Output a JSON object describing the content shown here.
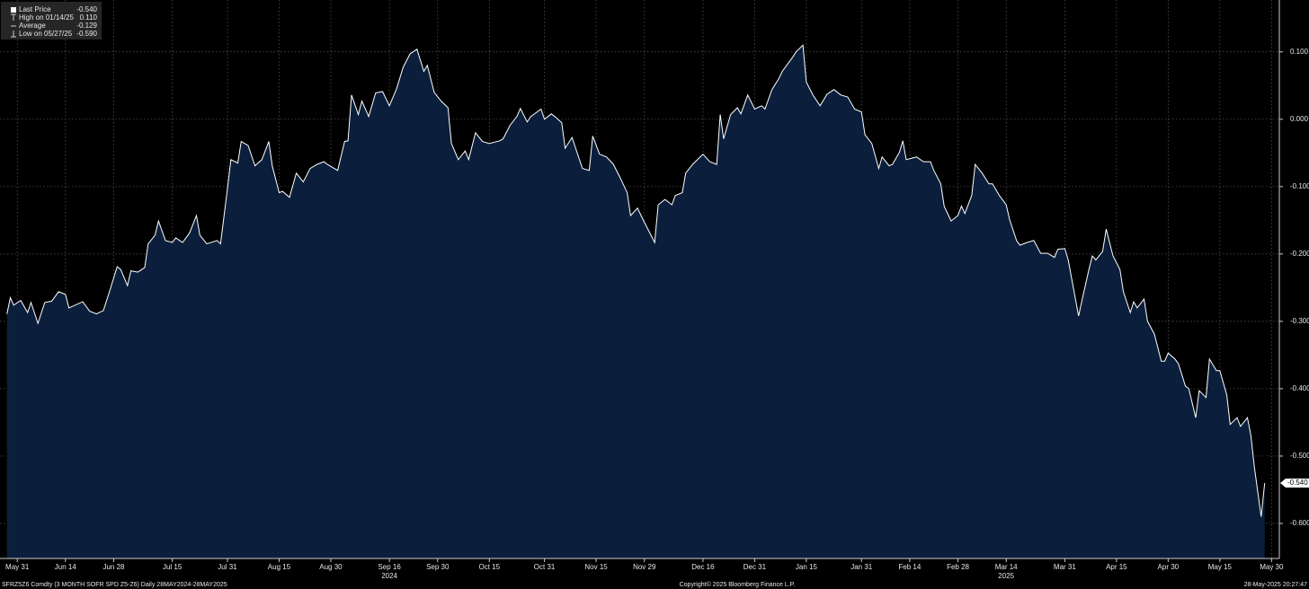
{
  "chart_data": {
    "type": "area",
    "legend": [
      {
        "label": "Last Price",
        "value": "-0.540"
      },
      {
        "label": "High on 01/14/25",
        "value": "0.110"
      },
      {
        "label": "Average",
        "value": "-0.129"
      },
      {
        "label": "Low on 05/27/25",
        "value": "-0.590"
      }
    ],
    "last_value": -0.54,
    "last_label": "-0.540",
    "color": "#ffffff",
    "fill_color": "#0b1f3d",
    "grid": true,
    "xlim": [
      "2024-05-26",
      "2025-06-01"
    ],
    "ylim": [
      -0.652,
      0.177
    ],
    "yticks": [
      {
        "value": 0.1,
        "label": "0.100"
      },
      {
        "value": 0,
        "label": "0.000"
      },
      {
        "value": -0.1,
        "label": "-0.100"
      },
      {
        "value": -0.2,
        "label": "-0.200"
      },
      {
        "value": -0.3,
        "label": "-0.300"
      },
      {
        "value": -0.4,
        "label": "-0.400"
      },
      {
        "value": -0.5,
        "label": "-0.500"
      },
      {
        "value": -0.6,
        "label": "-0.600"
      }
    ],
    "xticks": [
      {
        "value": "2024-05-31",
        "label": "May 31"
      },
      {
        "value": "2024-06-14",
        "label": "Jun 14"
      },
      {
        "value": "2024-06-28",
        "label": "Jun 28"
      },
      {
        "value": "2024-07-15",
        "label": "Jul 15"
      },
      {
        "value": "2024-07-31",
        "label": "Jul 31"
      },
      {
        "value": "2024-08-15",
        "label": "Aug 15"
      },
      {
        "value": "2024-08-30",
        "label": "Aug 30"
      },
      {
        "value": "2024-09-16",
        "label": "Sep 16"
      },
      {
        "value": "2024-09-30",
        "label": "Sep 30"
      },
      {
        "value": "2024-10-15",
        "label": "Oct 15"
      },
      {
        "value": "2024-10-31",
        "label": "Oct 31"
      },
      {
        "value": "2024-11-15",
        "label": "Nov 15"
      },
      {
        "value": "2024-11-29",
        "label": "Nov 29"
      },
      {
        "value": "2024-12-16",
        "label": "Dec 16"
      },
      {
        "value": "2024-12-31",
        "label": "Dec 31"
      },
      {
        "value": "2025-01-15",
        "label": "Jan 15"
      },
      {
        "value": "2025-01-31",
        "label": "Jan 31"
      },
      {
        "value": "2025-02-14",
        "label": "Feb 14"
      },
      {
        "value": "2025-02-28",
        "label": "Feb 28"
      },
      {
        "value": "2025-03-14",
        "label": "Mar 14"
      },
      {
        "value": "2025-03-31",
        "label": "Mar 31"
      },
      {
        "value": "2025-04-15",
        "label": "Apr 15"
      },
      {
        "value": "2025-04-30",
        "label": "Apr 30"
      },
      {
        "value": "2025-05-15",
        "label": "May 15"
      },
      {
        "value": "2025-05-30",
        "label": "May 30"
      }
    ],
    "year_labels": [
      {
        "value": "2024-09-16",
        "label": "2024"
      },
      {
        "value": "2025-03-14",
        "label": "2025"
      }
    ],
    "x": [
      "2024-05-28",
      "2024-05-29",
      "2024-05-30",
      "2024-06-01",
      "2024-06-03",
      "2024-06-04",
      "2024-06-06",
      "2024-06-08",
      "2024-06-10",
      "2024-06-12",
      "2024-06-14",
      "2024-06-15",
      "2024-06-19",
      "2024-06-21",
      "2024-06-23",
      "2024-06-25",
      "2024-06-27",
      "2024-06-29",
      "2024-06-30",
      "2024-07-02",
      "2024-07-03",
      "2024-07-05",
      "2024-07-07",
      "2024-07-08",
      "2024-07-10",
      "2024-07-11",
      "2024-07-13",
      "2024-07-15",
      "2024-07-16",
      "2024-07-18",
      "2024-07-20",
      "2024-07-22",
      "2024-07-23",
      "2024-07-25",
      "2024-07-28",
      "2024-07-29",
      "2024-07-31",
      "2024-08-01",
      "2024-08-03",
      "2024-08-04",
      "2024-08-06",
      "2024-08-08",
      "2024-08-10",
      "2024-08-12",
      "2024-08-13",
      "2024-08-15",
      "2024-08-16",
      "2024-08-18",
      "2024-08-20",
      "2024-08-22",
      "2024-08-24",
      "2024-08-26",
      "2024-08-28",
      "2024-08-29",
      "2024-09-01",
      "2024-09-03",
      "2024-09-04",
      "2024-09-05",
      "2024-09-07",
      "2024-09-08",
      "2024-09-10",
      "2024-09-12",
      "2024-09-14",
      "2024-09-16",
      "2024-09-18",
      "2024-09-20",
      "2024-09-22",
      "2024-09-24",
      "2024-09-26",
      "2024-09-27",
      "2024-09-29",
      "2024-10-01",
      "2024-10-03",
      "2024-10-04",
      "2024-10-06",
      "2024-10-08",
      "2024-10-09",
      "2024-10-11",
      "2024-10-13",
      "2024-10-15",
      "2024-10-18",
      "2024-10-19",
      "2024-10-21",
      "2024-10-23",
      "2024-10-24",
      "2024-10-26",
      "2024-10-27",
      "2024-10-30",
      "2024-10-31",
      "2024-11-02",
      "2024-11-03",
      "2024-11-05",
      "2024-11-06",
      "2024-11-08",
      "2024-11-11",
      "2024-11-13",
      "2024-11-14",
      "2024-11-16",
      "2024-11-18",
      "2024-11-20",
      "2024-11-22",
      "2024-11-24",
      "2024-11-25",
      "2024-11-27",
      "2024-11-29",
      "2024-11-30",
      "2024-12-02",
      "2024-12-03",
      "2024-12-05",
      "2024-12-07",
      "2024-12-08",
      "2024-12-10",
      "2024-12-11",
      "2024-12-13",
      "2024-12-16",
      "2024-12-18",
      "2024-12-20",
      "2024-12-21",
      "2024-12-22",
      "2024-12-24",
      "2024-12-26",
      "2024-12-27",
      "2024-12-29",
      "2024-12-31",
      "2025-01-02",
      "2025-01-03",
      "2025-01-05",
      "2025-01-07",
      "2025-01-08",
      "2025-01-11",
      "2025-01-12",
      "2025-01-14",
      "2025-01-15",
      "2025-01-17",
      "2025-01-19",
      "2025-01-21",
      "2025-01-23",
      "2025-01-25",
      "2025-01-27",
      "2025-01-29",
      "2025-01-31",
      "2025-02-01",
      "2025-02-03",
      "2025-02-05",
      "2025-02-06",
      "2025-02-08",
      "2025-02-09",
      "2025-02-11",
      "2025-02-12",
      "2025-02-13",
      "2025-02-16",
      "2025-02-18",
      "2025-02-20",
      "2025-02-21",
      "2025-02-23",
      "2025-02-24",
      "2025-02-26",
      "2025-02-28",
      "2025-03-01",
      "2025-03-02",
      "2025-03-04",
      "2025-03-05",
      "2025-03-07",
      "2025-03-09",
      "2025-03-10",
      "2025-03-12",
      "2025-03-14",
      "2025-03-15",
      "2025-03-17",
      "2025-03-18",
      "2025-03-20",
      "2025-03-22",
      "2025-03-24",
      "2025-03-26",
      "2025-03-28",
      "2025-03-29",
      "2025-03-31",
      "2025-04-01",
      "2025-04-04",
      "2025-04-05",
      "2025-04-07",
      "2025-04-08",
      "2025-04-09",
      "2025-04-11",
      "2025-04-12",
      "2025-04-14",
      "2025-04-16",
      "2025-04-17",
      "2025-04-19",
      "2025-04-20",
      "2025-04-21",
      "2025-04-23",
      "2025-04-24",
      "2025-04-26",
      "2025-04-28",
      "2025-04-29",
      "2025-04-30",
      "2025-05-02",
      "2025-05-03",
      "2025-05-05",
      "2025-05-06",
      "2025-05-08",
      "2025-05-09",
      "2025-05-11",
      "2025-05-12",
      "2025-05-14",
      "2025-05-15",
      "2025-05-17",
      "2025-05-18",
      "2025-05-20",
      "2025-05-21",
      "2025-05-23",
      "2025-05-24",
      "2025-05-25",
      "2025-05-27",
      "2025-05-28"
    ],
    "values": [
      -0.289,
      -0.265,
      -0.276,
      -0.269,
      -0.287,
      -0.272,
      -0.303,
      -0.272,
      -0.27,
      -0.256,
      -0.26,
      -0.28,
      -0.271,
      -0.285,
      -0.289,
      -0.284,
      -0.252,
      -0.219,
      -0.223,
      -0.247,
      -0.225,
      -0.227,
      -0.22,
      -0.185,
      -0.172,
      -0.151,
      -0.18,
      -0.183,
      -0.176,
      -0.183,
      -0.169,
      -0.143,
      -0.172,
      -0.185,
      -0.18,
      -0.185,
      -0.103,
      -0.06,
      -0.065,
      -0.033,
      -0.039,
      -0.069,
      -0.06,
      -0.033,
      -0.069,
      -0.109,
      -0.107,
      -0.116,
      -0.08,
      -0.093,
      -0.073,
      -0.067,
      -0.063,
      -0.067,
      -0.076,
      -0.033,
      -0.032,
      0.036,
      0.007,
      0.027,
      0.004,
      0.039,
      0.041,
      0.02,
      0.044,
      0.077,
      0.097,
      0.104,
      0.071,
      0.08,
      0.04,
      0.027,
      0.017,
      -0.036,
      -0.06,
      -0.047,
      -0.06,
      -0.02,
      -0.033,
      -0.036,
      -0.032,
      -0.029,
      -0.009,
      0.004,
      0.016,
      -0.004,
      0.004,
      0.015,
      0,
      0.008,
      0.004,
      -0.005,
      -0.043,
      -0.027,
      -0.073,
      -0.076,
      -0.025,
      -0.052,
      -0.056,
      -0.067,
      -0.087,
      -0.109,
      -0.143,
      -0.132,
      -0.153,
      -0.163,
      -0.183,
      -0.127,
      -0.119,
      -0.127,
      -0.113,
      -0.109,
      -0.08,
      -0.067,
      -0.052,
      -0.063,
      -0.067,
      0.007,
      -0.029,
      0.007,
      0.017,
      0.008,
      0.036,
      0.015,
      0.02,
      0.015,
      0.044,
      0.06,
      0.071,
      0.092,
      0.1,
      0.11,
      0.055,
      0.035,
      0.02,
      0.037,
      0.044,
      0.036,
      0.033,
      0.015,
      0.011,
      -0.023,
      -0.036,
      -0.073,
      -0.056,
      -0.069,
      -0.067,
      -0.049,
      -0.032,
      -0.06,
      -0.056,
      -0.063,
      -0.063,
      -0.076,
      -0.096,
      -0.129,
      -0.151,
      -0.143,
      -0.129,
      -0.14,
      -0.113,
      -0.067,
      -0.08,
      -0.096,
      -0.096,
      -0.113,
      -0.127,
      -0.149,
      -0.18,
      -0.187,
      -0.183,
      -0.18,
      -0.199,
      -0.199,
      -0.205,
      -0.193,
      -0.192,
      -0.209,
      -0.292,
      -0.269,
      -0.223,
      -0.203,
      -0.209,
      -0.196,
      -0.163,
      -0.203,
      -0.223,
      -0.256,
      -0.287,
      -0.271,
      -0.28,
      -0.267,
      -0.3,
      -0.319,
      -0.359,
      -0.359,
      -0.347,
      -0.356,
      -0.363,
      -0.396,
      -0.4,
      -0.443,
      -0.403,
      -0.413,
      -0.356,
      -0.373,
      -0.373,
      -0.409,
      -0.453,
      -0.443,
      -0.456,
      -0.443,
      -0.469,
      -0.516,
      -0.59,
      -0.54
    ],
    "footer": {
      "left": "SFRZ5Z6 Comdty (3 MONTH SOFR SPD  Z5-Z6)  Daily 28MAY2024-28MAY2025",
      "center": "Copyright© 2025 Bloomberg Finance L.P.",
      "right": "28-May-2025 20:27:47"
    }
  }
}
